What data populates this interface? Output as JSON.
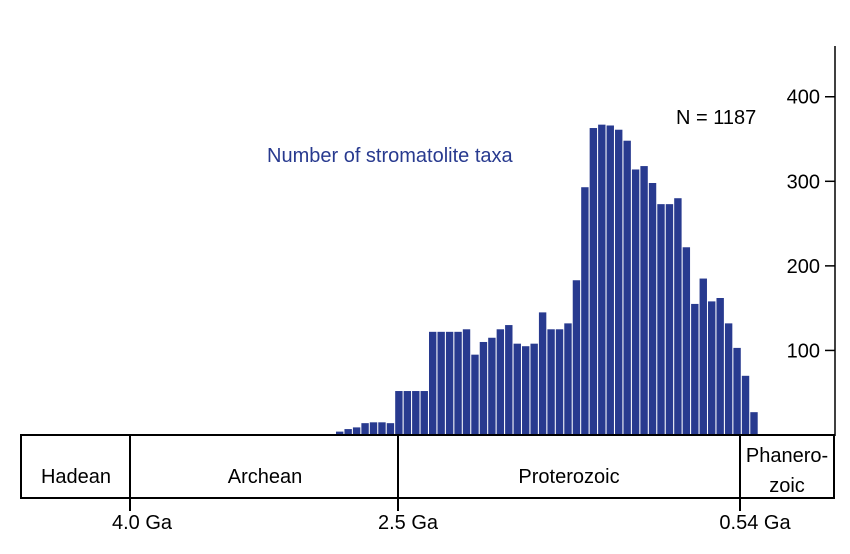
{
  "chart_data": {
    "type": "bar",
    "title": "Number of stromatolite taxa",
    "annotation": "N = 1187",
    "bar_color": "#283a8f",
    "y_axis": {
      "side": "right",
      "ylim": [
        0,
        460
      ],
      "ticks": [
        100,
        200,
        300,
        400
      ],
      "tick_labels": [
        "100",
        "200",
        "300",
        "400"
      ]
    },
    "values": [
      4,
      7,
      9,
      14,
      15,
      15,
      14,
      52,
      52,
      52,
      52,
      122,
      122,
      122,
      122,
      125,
      95,
      110,
      115,
      125,
      130,
      108,
      105,
      108,
      145,
      125,
      125,
      132,
      183,
      293,
      363,
      367,
      366,
      361,
      348,
      314,
      318,
      298,
      273,
      273,
      280,
      222,
      155,
      185,
      158,
      162,
      132,
      103,
      70,
      27
    ],
    "eons": [
      {
        "name": "Hadean",
        "label": "Hadean"
      },
      {
        "name": "Archean",
        "label": "Archean"
      },
      {
        "name": "Proterozoic",
        "label": "Proterozoic"
      },
      {
        "name": "Phanerozoic",
        "label_line1": "Phanero-",
        "label_line2": "zoic"
      }
    ],
    "boundaries": [
      {
        "label": "4.0 Ga"
      },
      {
        "label": "2.5 Ga"
      },
      {
        "label": "0.54 Ga"
      }
    ],
    "grid": false,
    "legend": "none"
  }
}
